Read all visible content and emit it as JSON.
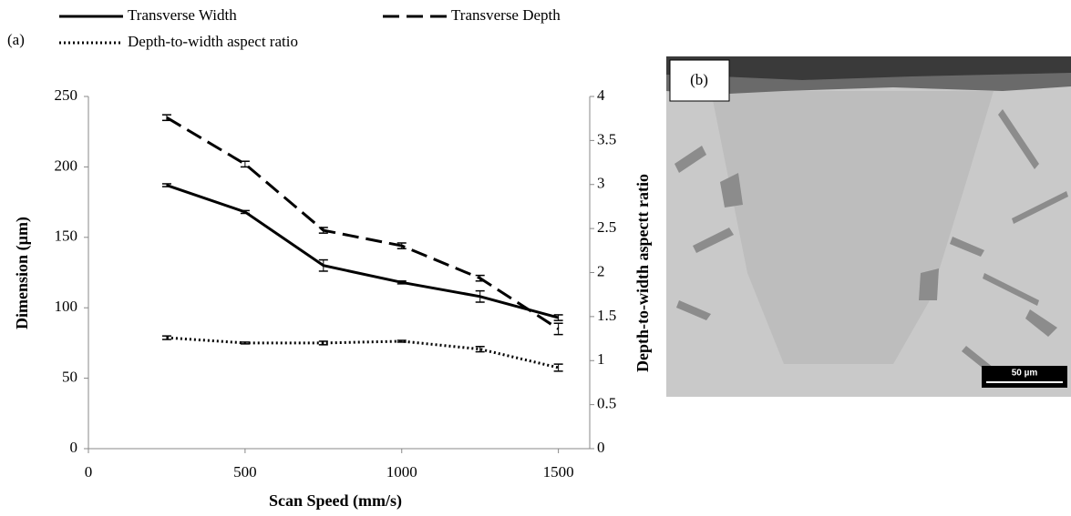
{
  "panel_label": "(a)",
  "chart_data": {
    "type": "line",
    "xlabel": "Scan Speed (mm/s)",
    "ylabel": "Dimension (µm)",
    "y2label": "Depth-to-width aspectt ratio",
    "x": [
      250,
      500,
      750,
      1000,
      1250,
      1500
    ],
    "xlim": [
      0,
      1600
    ],
    "xticks": [
      0,
      500,
      1000,
      1500
    ],
    "ylim": [
      0,
      250
    ],
    "yticks": [
      0,
      50,
      100,
      150,
      200,
      250
    ],
    "y2lim": [
      0,
      4
    ],
    "y2ticks": [
      0,
      0.5,
      1,
      1.5,
      2,
      2.5,
      3,
      3.5,
      4
    ],
    "series": [
      {
        "name": "Transverse Width",
        "color": "#000000",
        "dash": "solid",
        "values": [
          187,
          168,
          130,
          118,
          108,
          93
        ],
        "errors": [
          1,
          1,
          4,
          1,
          4,
          2
        ]
      },
      {
        "name": "Transverse Depth",
        "color": "#000000",
        "dash": "dashed",
        "values": [
          235,
          202,
          155,
          144,
          121,
          85
        ],
        "errors": [
          2,
          2,
          2,
          2,
          2,
          4
        ]
      },
      {
        "name": "Depth-to-width aspect ratio",
        "color": "#000000",
        "dash": "dotted",
        "axis": "y2",
        "values": [
          1.26,
          1.2,
          1.2,
          1.22,
          1.13,
          0.92
        ],
        "errors": [
          0.02,
          0.01,
          0.02,
          0.01,
          0.03,
          0.04
        ]
      }
    ]
  },
  "micrograph": {
    "label": "(b)",
    "scale_bar": "50 µm"
  }
}
